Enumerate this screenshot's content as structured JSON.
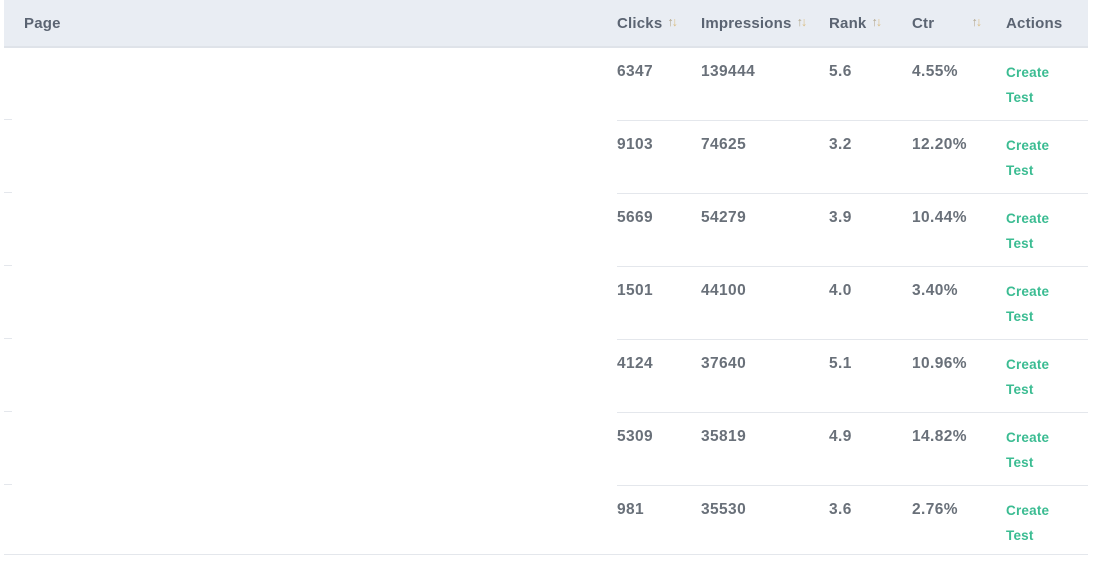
{
  "header": {
    "columns": [
      {
        "label": "Page",
        "sortable": false
      },
      {
        "label": "Clicks",
        "sortable": true
      },
      {
        "label": "Impressions",
        "sortable": true
      },
      {
        "label": "Rank",
        "sortable": true
      },
      {
        "label": "Ctr",
        "sortable": true
      },
      {
        "label": "Actions",
        "sortable": false
      }
    ],
    "sort_up_glyph": "↑",
    "sort_down_glyph": "↓"
  },
  "rows": [
    {
      "page": "",
      "clicks": "6347",
      "impressions": "139444",
      "rank": "5.6",
      "ctr": "4.55%",
      "action": "Create Test"
    },
    {
      "page": "",
      "clicks": "9103",
      "impressions": "74625",
      "rank": "3.2",
      "ctr": "12.20%",
      "action": "Create Test"
    },
    {
      "page": "",
      "clicks": "5669",
      "impressions": "54279",
      "rank": "3.9",
      "ctr": "10.44%",
      "action": "Create Test"
    },
    {
      "page": "",
      "clicks": "1501",
      "impressions": "44100",
      "rank": "4.0",
      "ctr": "3.40%",
      "action": "Create Test"
    },
    {
      "page": "",
      "clicks": "4124",
      "impressions": "37640",
      "rank": "5.1",
      "ctr": "10.96%",
      "action": "Create Test"
    },
    {
      "page": "",
      "clicks": "5309",
      "impressions": "35819",
      "rank": "4.9",
      "ctr": "14.82%",
      "action": "Create Test"
    },
    {
      "page": "",
      "clicks": "981",
      "impressions": "35530",
      "rank": "3.6",
      "ctr": "2.76%",
      "action": "Create Test"
    }
  ],
  "colors": {
    "header_bg": "#e9edf3",
    "header_text": "#5b6472",
    "sort_arrow_up": "#b3a88d",
    "sort_arrow_down": "#d9bd82",
    "body_text": "#697079",
    "action_link_green": "#3bbc92",
    "row_divider": "#e4e7ec"
  }
}
